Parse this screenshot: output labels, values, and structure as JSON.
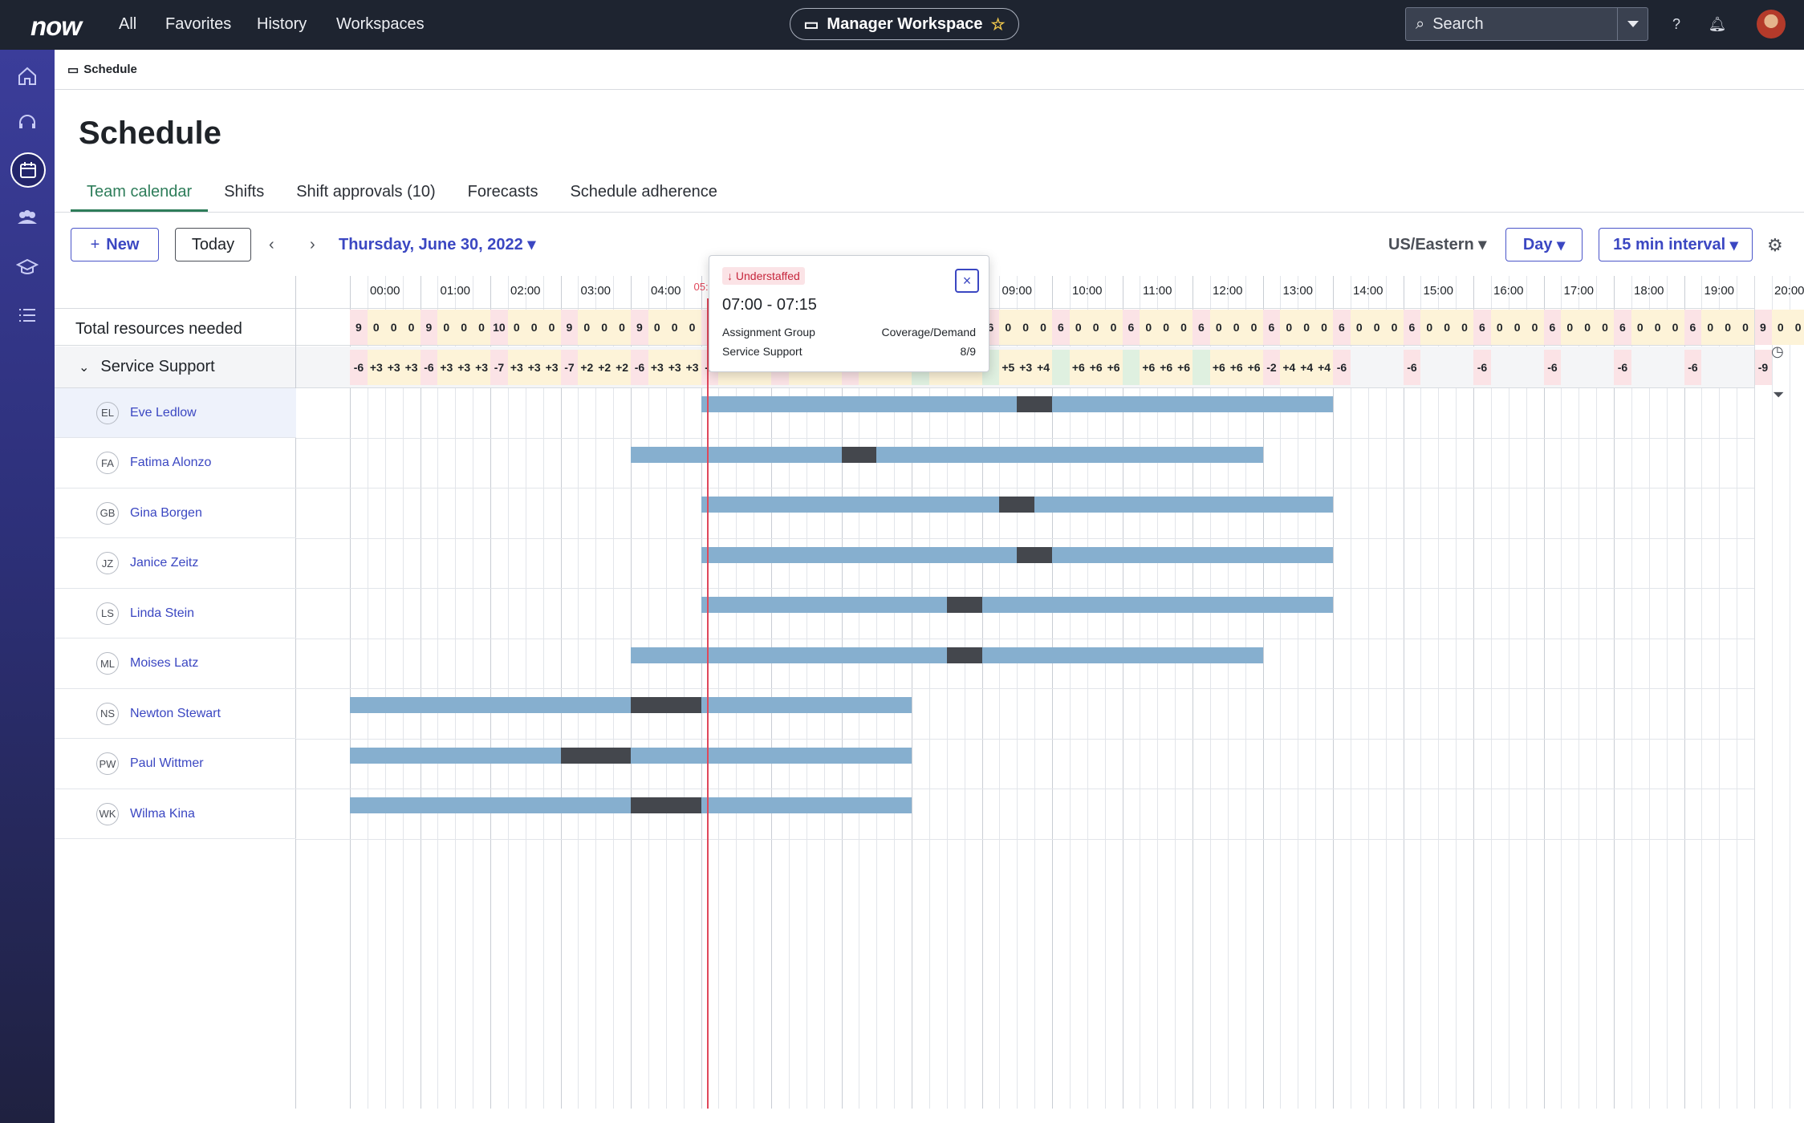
{
  "topnav": {
    "logo": "now",
    "links": [
      "All",
      "Favorites",
      "History",
      "Workspaces"
    ],
    "workspace": "Manager Workspace",
    "search_placeholder": "Search"
  },
  "breadcrumb": "Schedule",
  "title": "Schedule",
  "tabs": [
    "Team calendar",
    "Shifts",
    "Shift approvals (10)",
    "Forecasts",
    "Schedule adherence"
  ],
  "toolbar": {
    "new_label": "New",
    "today_label": "Today",
    "date": "Thursday, June 30, 2022",
    "timezone": "US/Eastern",
    "view": "Day",
    "interval": "15 min interval"
  },
  "hours": [
    "00:00",
    "01:00",
    "02:00",
    "03:00",
    "04:00",
    "05:00",
    "06:00",
    "07:00",
    "08:00",
    "09:00",
    "10:00",
    "11:00",
    "12:00",
    "13:00",
    "14:00",
    "15:00",
    "16:00",
    "17:00",
    "18:00",
    "19:00",
    "20:00"
  ],
  "total_label": "Total resources needed",
  "total_values": [
    "9",
    "0",
    "0",
    "0",
    "9",
    "0",
    "0",
    "0",
    "10",
    "0",
    "0",
    "0",
    "9",
    "0",
    "0",
    "0",
    "9",
    "0",
    "0",
    "0",
    "1",
    "",
    "",
    "",
    "",
    "",
    "",
    "",
    "",
    "",
    "",
    "",
    "",
    "",
    "",
    "",
    "6",
    "0",
    "0",
    "0",
    "6",
    "0",
    "0",
    "0",
    "6",
    "0",
    "0",
    "0",
    "6",
    "0",
    "0",
    "0",
    "6",
    "0",
    "0",
    "0",
    "6",
    "0",
    "0",
    "0",
    "6",
    "0",
    "0",
    "0",
    "6",
    "0",
    "0",
    "0",
    "6",
    "0",
    "0",
    "0",
    "6",
    "0",
    "0",
    "0",
    "6",
    "0",
    "0",
    "0",
    "9",
    "0",
    "0"
  ],
  "group": {
    "label": "Service Support",
    "values": [
      "-6",
      "+3",
      "+3",
      "+3",
      "-6",
      "+3",
      "+3",
      "+3",
      "-7",
      "+3",
      "+3",
      "+3",
      "-7",
      "+2",
      "+2",
      "+2",
      "-6",
      "+3",
      "+3",
      "+3",
      "-1",
      "+9",
      "+9",
      "+9",
      "-1",
      "+9",
      "+9",
      "+9",
      "-1",
      "+8",
      "+9",
      "+9",
      "",
      "+6",
      "+4",
      "+4",
      "",
      "+5",
      "+3",
      "+4",
      "",
      "+6",
      "+6",
      "+6",
      "",
      "+6",
      "+6",
      "+6",
      "",
      "+6",
      "+6",
      "+6",
      "-2",
      "+4",
      "+4",
      "+4",
      "-6",
      "",
      "",
      "",
      "-6",
      "",
      "",
      "",
      "-6",
      "",
      "",
      "",
      "-6",
      "",
      "",
      "",
      "-6",
      "",
      "",
      "",
      "-6",
      "",
      "",
      "",
      "-9",
      "",
      ""
    ]
  },
  "now_label": "05:05",
  "people": [
    {
      "initials": "EL",
      "name": "Eve Ledlow"
    },
    {
      "initials": "FA",
      "name": "Fatima Alonzo"
    },
    {
      "initials": "GB",
      "name": "Gina Borgen"
    },
    {
      "initials": "JZ",
      "name": "Janice Zeitz"
    },
    {
      "initials": "LS",
      "name": "Linda Stein"
    },
    {
      "initials": "ML",
      "name": "Moises Latz"
    },
    {
      "initials": "NS",
      "name": "Newton Stewart"
    },
    {
      "initials": "PW",
      "name": "Paul Wittmer"
    },
    {
      "initials": "WK",
      "name": "Wilma Kina"
    }
  ],
  "shifts": [
    {
      "start": 5.0,
      "end": 14.0,
      "break_start": 9.5,
      "break_end": 10.0
    },
    {
      "start": 4.0,
      "end": 13.0,
      "break_start": 7.0,
      "break_end": 7.5
    },
    {
      "start": 5.0,
      "end": 14.0,
      "break_start": 9.25,
      "break_end": 9.75
    },
    {
      "start": 5.0,
      "end": 14.0,
      "break_start": 9.5,
      "break_end": 10.0
    },
    {
      "start": 5.0,
      "end": 14.0,
      "break_start": 8.5,
      "break_end": 9.0
    },
    {
      "start": 4.0,
      "end": 13.0,
      "break_start": 8.5,
      "break_end": 9.0
    },
    {
      "start": 0.0,
      "end": 8.0,
      "break_start": 4.0,
      "break_end": 5.0
    },
    {
      "start": 0.0,
      "end": 8.0,
      "break_start": 3.0,
      "break_end": 4.0
    },
    {
      "start": 0.0,
      "end": 8.0,
      "break_start": 4.0,
      "break_end": 5.0
    }
  ],
  "popup": {
    "badge": "Understaffed",
    "range": "07:00 - 07:15",
    "col1_header": "Assignment Group",
    "col2_header": "Coverage/Demand",
    "col1_value": "Service Support",
    "col2_value": "8/9"
  }
}
